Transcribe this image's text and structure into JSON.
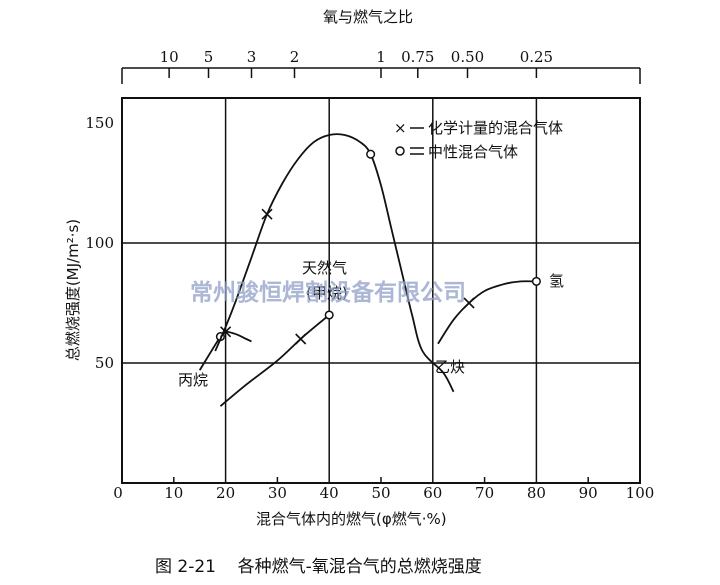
{
  "chart_data": {
    "type": "line",
    "x_axis": {
      "ticks": [
        "0",
        "10",
        "20",
        "30",
        "40",
        "50",
        "60",
        "70",
        "80",
        "90",
        "100"
      ],
      "min": 0,
      "max": 100
    },
    "y_axis": {
      "label": "总燃烧强度(MJ/m²·s)",
      "ticks": [
        "50",
        "100",
        "150"
      ],
      "min": 0,
      "max": 160
    },
    "top_axis": {
      "label": "氧与燃气之比",
      "ticks": [
        {
          "label": "10",
          "x": 9.1
        },
        {
          "label": "5",
          "x": 16.7
        },
        {
          "label": "3",
          "x": 25
        },
        {
          "label": "2",
          "x": 33.3
        },
        {
          "label": "1",
          "x": 50
        },
        {
          "label": "0.75",
          "x": 57.1
        },
        {
          "label": "0.50",
          "x": 66.7
        },
        {
          "label": "0.25",
          "x": 80
        }
      ]
    },
    "grid": true,
    "legend": {
      "placement": "top-right",
      "entries": [
        {
          "marker": "x",
          "text": "化学计量的混合气体"
        },
        {
          "marker": "o",
          "text": "中性混合气体"
        }
      ]
    },
    "series": [
      {
        "name": "丙烷",
        "points": [
          [
            15,
            47
          ],
          [
            19,
            61
          ],
          [
            20,
            63
          ],
          [
            22,
            62
          ],
          [
            24,
            60
          ],
          [
            25,
            59
          ]
        ],
        "markers": [
          {
            "type": "o",
            "x": 19,
            "y": 61
          },
          {
            "type": "x",
            "x": 20,
            "y": 63
          }
        ]
      },
      {
        "name": "乙炔",
        "points": [
          [
            18,
            55
          ],
          [
            20,
            65
          ],
          [
            22,
            76
          ],
          [
            25,
            94
          ],
          [
            28,
            112
          ],
          [
            31,
            125
          ],
          [
            34,
            135
          ],
          [
            37,
            142
          ],
          [
            40,
            145
          ],
          [
            43,
            145
          ],
          [
            46,
            142
          ],
          [
            48,
            137
          ],
          [
            50,
            124
          ],
          [
            52,
            106
          ],
          [
            54,
            88
          ],
          [
            56,
            70
          ],
          [
            58,
            55
          ],
          [
            62,
            46
          ],
          [
            64,
            38
          ]
        ],
        "markers": [
          {
            "type": "x",
            "x": 28,
            "y": 112
          },
          {
            "type": "o",
            "x": 48,
            "y": 137
          }
        ]
      },
      {
        "name": "天然气(甲烷)",
        "points": [
          [
            19,
            32
          ],
          [
            24,
            41
          ],
          [
            30,
            51
          ],
          [
            35,
            61
          ],
          [
            40,
            70
          ]
        ],
        "markers": [
          {
            "type": "x",
            "x": 34.5,
            "y": 60
          },
          {
            "type": "o",
            "x": 40,
            "y": 70
          }
        ]
      },
      {
        "name": "氢",
        "points": [
          [
            61,
            58
          ],
          [
            64,
            68
          ],
          [
            67,
            75
          ],
          [
            70,
            80
          ],
          [
            74,
            83
          ],
          [
            77,
            84
          ],
          [
            80,
            84
          ]
        ],
        "markers": [
          {
            "type": "x",
            "x": 67,
            "y": 75
          },
          {
            "type": "o",
            "x": 80,
            "y": 84
          }
        ]
      }
    ],
    "annotations": [
      "丙烷",
      "天然气",
      "(甲烷)",
      "乙炔",
      "氢"
    ]
  },
  "xlabel": "混合气体内的燃气(φ燃气·%)",
  "caption": "图 2-21    各种燃气-氧混合气的总燃烧强度",
  "watermark": "常州骏恒焊割设备有限公司"
}
